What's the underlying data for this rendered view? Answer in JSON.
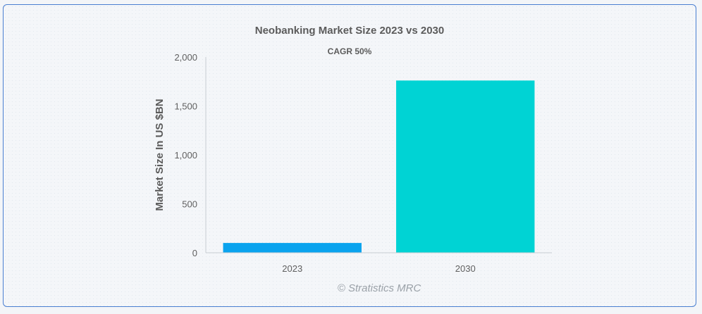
{
  "chart_data": {
    "type": "bar",
    "title": "Neobanking Market Size 2023 vs 2030",
    "subtitle": "CAGR 50%",
    "xlabel": "",
    "ylabel": "Market Size In US $BN",
    "categories": [
      "2023",
      "2030"
    ],
    "values": [
      100,
      1760
    ],
    "colors": [
      "#0aa3ee",
      "#00d3d4"
    ],
    "ylim": [
      0,
      2000
    ],
    "yticks": [
      0,
      500,
      1000,
      1500,
      2000
    ],
    "ytick_labels": [
      "0",
      "500",
      "1,000",
      "1,500",
      "2,000"
    ],
    "grid": false,
    "legend": "none"
  },
  "credit": "© Stratistics MRC"
}
